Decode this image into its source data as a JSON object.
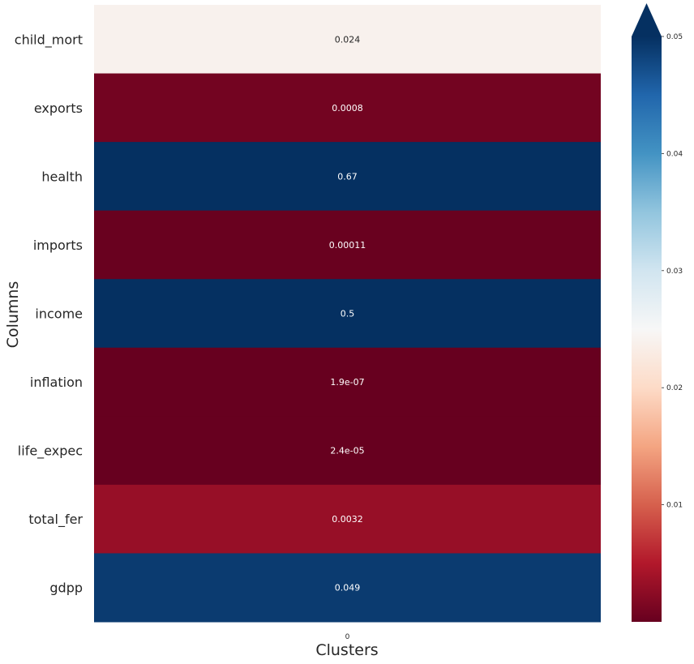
{
  "chart_data": {
    "type": "heatmap",
    "xlabel": "Clusters",
    "ylabel": "Columns",
    "columns": [
      "0"
    ],
    "rows": [
      "child_mort",
      "exports",
      "health",
      "imports",
      "income",
      "inflation",
      "life_expec",
      "total_fer",
      "gdpp"
    ],
    "values": [
      0.024,
      0.0008,
      0.67,
      0.00011,
      0.5,
      1.9e-07,
      2.4e-05,
      0.0032,
      0.049
    ],
    "annotations": [
      "0.024",
      "0.0008",
      "0.67",
      "0.00011",
      "0.5",
      "1.9e-07",
      "2.4e-05",
      "0.0032",
      "0.049"
    ],
    "colorbar": {
      "colormap": "RdBu",
      "vmin": 0.0,
      "vmax": 0.05,
      "extend": "max",
      "ticks": [
        0.01,
        0.02,
        0.03,
        0.04,
        0.05
      ],
      "tick_labels": [
        "0.01",
        "0.02",
        "0.03",
        "0.04",
        "0.05"
      ]
    },
    "grid": false,
    "legend": "right"
  }
}
